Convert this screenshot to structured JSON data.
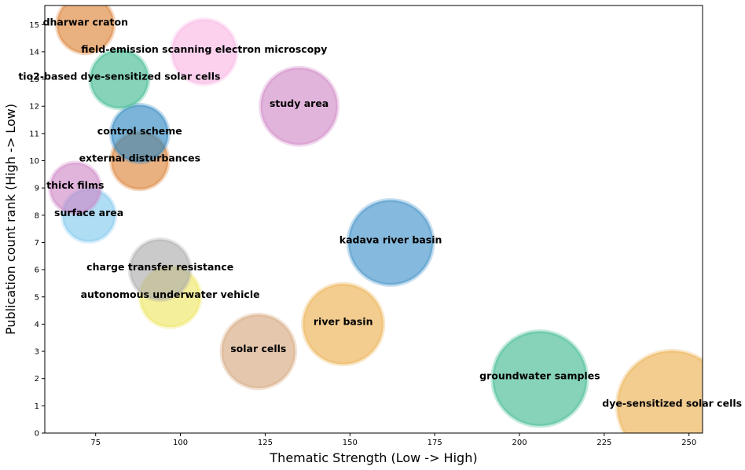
{
  "chart_data": {
    "type": "scatter",
    "xlabel": "Thematic Strength (Low -> High)",
    "ylabel": "Publication count rank (High -> Low)",
    "xlim": [
      60,
      254
    ],
    "ylim": [
      0,
      15.7
    ],
    "x_ticks": [
      75,
      100,
      125,
      150,
      175,
      200,
      225,
      250
    ],
    "y_ticks": [
      0,
      1,
      2,
      3,
      4,
      5,
      6,
      7,
      8,
      9,
      10,
      11,
      12,
      13,
      14,
      15
    ],
    "grid": false,
    "points": [
      {
        "label": "dye-sensitized solar cells",
        "x": 245,
        "y": 1,
        "size": 1.0,
        "color": "#EBAF4C"
      },
      {
        "label": "groundwater samples",
        "x": 206,
        "y": 2,
        "size": 0.86,
        "color": "#3CB88E"
      },
      {
        "label": "solar cells",
        "x": 123,
        "y": 3,
        "size": 0.67,
        "color": "#D5A47A"
      },
      {
        "label": "river basin",
        "x": 148,
        "y": 4,
        "size": 0.73,
        "color": "#EBAF4C"
      },
      {
        "label": "autonomous underwater vehicle",
        "x": 97,
        "y": 5,
        "size": 0.55,
        "color": "#EEE55E"
      },
      {
        "label": "charge transfer resistance",
        "x": 94,
        "y": 6,
        "size": 0.55,
        "color": "#A9A9A9"
      },
      {
        "label": "kadava river basin",
        "x": 162,
        "y": 7,
        "size": 0.77,
        "color": "#3A8EC8"
      },
      {
        "label": "surface area",
        "x": 73,
        "y": 8,
        "size": 0.48,
        "color": "#7EC8EE"
      },
      {
        "label": "thick films",
        "x": 69,
        "y": 9,
        "size": 0.46,
        "color": "#CF86C6"
      },
      {
        "label": "external disturbances",
        "x": 88,
        "y": 10,
        "size": 0.52,
        "color": "#DB7F32"
      },
      {
        "label": "control scheme",
        "x": 88,
        "y": 11,
        "size": 0.52,
        "color": "#2A86C0"
      },
      {
        "label": "study area",
        "x": 135,
        "y": 12,
        "size": 0.7,
        "color": "#CF86C6"
      },
      {
        "label": "tio2-based dye-sensitized solar cells",
        "x": 82,
        "y": 13,
        "size": 0.53,
        "color": "#3CB88E"
      },
      {
        "label": "field-emission scanning electron microscopy",
        "x": 107,
        "y": 14,
        "size": 0.59,
        "color": "#F8B5E4"
      },
      {
        "label": "dharwar craton",
        "x": 72,
        "y": 15,
        "size": 0.52,
        "color": "#DB7F32"
      }
    ]
  }
}
